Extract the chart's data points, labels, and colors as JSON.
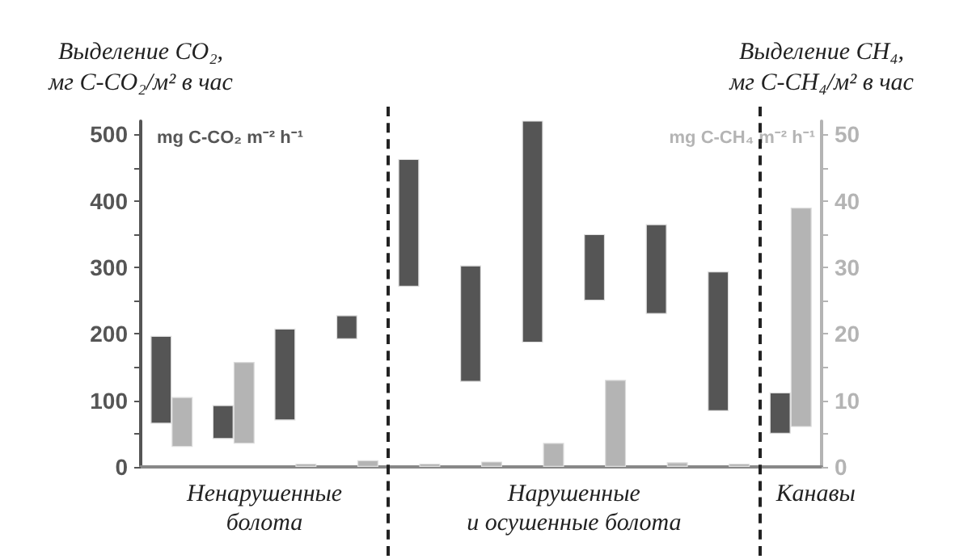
{
  "chart_data": {
    "type": "bar",
    "categories": [
      null,
      null,
      null,
      null,
      null,
      null,
      null,
      null,
      null,
      null,
      null
    ],
    "tick_labels": "y",
    "series": [
      {
        "color": "#555555",
        "base": [
          65,
          42,
          70,
          192,
          271,
          128,
          187,
          250,
          230,
          84,
          50
        ],
        "values": [
          132,
          51,
          138,
          36,
          192,
          175,
          343,
          100,
          135,
          210,
          62
        ]
      },
      {
        "axis": "y2",
        "color": "#b4b4b4",
        "base": [
          3,
          3.5,
          0,
          0,
          0,
          0,
          0,
          0,
          0,
          0,
          6
        ],
        "values": [
          7.5,
          12.3,
          0.5,
          1,
          0.5,
          0.8,
          3.6,
          13.1,
          0.7,
          0.5,
          33
        ]
      }
    ],
    "ylim": [
      0,
      520
    ],
    "yticks": [
      0,
      {
        "value": 50,
        "label": null
      },
      100,
      {
        "value": 150,
        "label": null
      },
      200,
      {
        "value": 250,
        "label": null
      },
      300,
      {
        "value": 350,
        "label": null
      },
      400,
      {
        "value": 450,
        "label": null
      },
      500
    ],
    "y2lim": [
      0,
      52
    ],
    "y2ticks": [
      0,
      {
        "value": 5,
        "label": null
      },
      10,
      {
        "value": 15,
        "label": null
      },
      20,
      {
        "value": 25,
        "label": null
      },
      30,
      {
        "value": 35,
        "label": null
      },
      40,
      {
        "value": 45,
        "label": null
      },
      50
    ],
    "ylabel": "Выделение CO₂,\nмг C-CO₂/м² в час",
    "y2label": "Выделение CH₄,\nмг C-CH₄/м² в час",
    "annotations": [
      "mg C-CO₂ m⁻² h⁻¹",
      "mg C-CH₄ m⁻² h⁻¹",
      "Ненарушенные\nболота",
      "Нарушенные\nи осушенные болота",
      "Канавы"
    ],
    "grid": false
  }
}
